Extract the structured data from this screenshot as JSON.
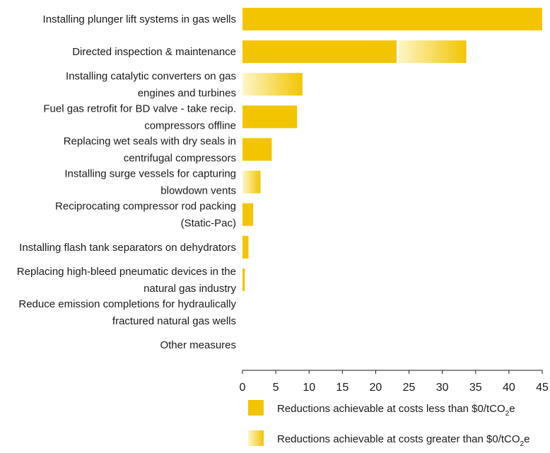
{
  "chart_data": {
    "type": "bar",
    "orientation": "horizontal",
    "categories": [
      "Installing plunger lift systems in gas wells",
      "Directed inspection & maintenance",
      "Installing catalytic converters on gas engines and turbines",
      "Fuel gas retrofit for BD valve - take recip. compressors offline",
      "Replacing wet seals with dry seals in centrifugal compressors",
      "Installing surge vessels for capturing blowdown vents",
      "Reciprocating compressor rod packing (Static-Pac)",
      "Installing flash tank separators on dehydrators",
      "Replacing high-bleed pneumatic devices in the natural gas industry",
      "Reduce emission completions for hydraulically fractured natural gas wells",
      "Other measures"
    ],
    "category_lines": [
      [
        "Installing plunger lift systems in gas wells"
      ],
      [
        "Directed inspection & maintenance"
      ],
      [
        "Installing catalytic converters on gas",
        "engines and turbines"
      ],
      [
        "Fuel gas retrofit for BD valve - take recip.",
        "compressors offline"
      ],
      [
        "Replacing wet seals with dry seals in",
        "centrifugal compressors"
      ],
      [
        "Installing surge vessels for capturing",
        "blowdown vents"
      ],
      [
        "Reciprocating compressor rod packing",
        "(Static-Pac)"
      ],
      [
        "Installing flash tank separators on dehydrators"
      ],
      [
        "Replacing high-bleed pneumatic devices in the",
        "natural gas industry"
      ],
      [
        "Reduce emission completions for hydraulically",
        "fractured natural gas wells"
      ],
      [
        "Other measures"
      ]
    ],
    "series": [
      {
        "name": "Reductions achievable at costs less than $0/tCO2e",
        "color": "#f2c500",
        "style": "solid",
        "values": [
          45,
          23.3,
          0,
          8.2,
          4.4,
          0,
          1.6,
          0.9,
          0.35,
          0,
          0
        ]
      },
      {
        "name": "Reductions achievable at costs greater than $0/tCO2e",
        "color": "#f2c500",
        "style": "gradient",
        "values": [
          0,
          10.3,
          9.0,
          0,
          0,
          2.7,
          0,
          0,
          0,
          0,
          0
        ]
      }
    ],
    "xlim": [
      0,
      45
    ],
    "xticks": [
      0,
      5,
      10,
      15,
      20,
      25,
      30,
      35,
      40,
      45
    ],
    "xlabel": "",
    "ylabel": "",
    "grid": false,
    "legend": {
      "placement": "bottom-right",
      "items": [
        {
          "prefix": "Reductions achievable at costs less than $0/tCO",
          "sub": "2",
          "suffix": "e",
          "style": "solid"
        },
        {
          "prefix": "Reductions achievable at costs greater than $0/tCO",
          "sub": "2",
          "suffix": "e",
          "style": "gradient"
        }
      ]
    }
  }
}
